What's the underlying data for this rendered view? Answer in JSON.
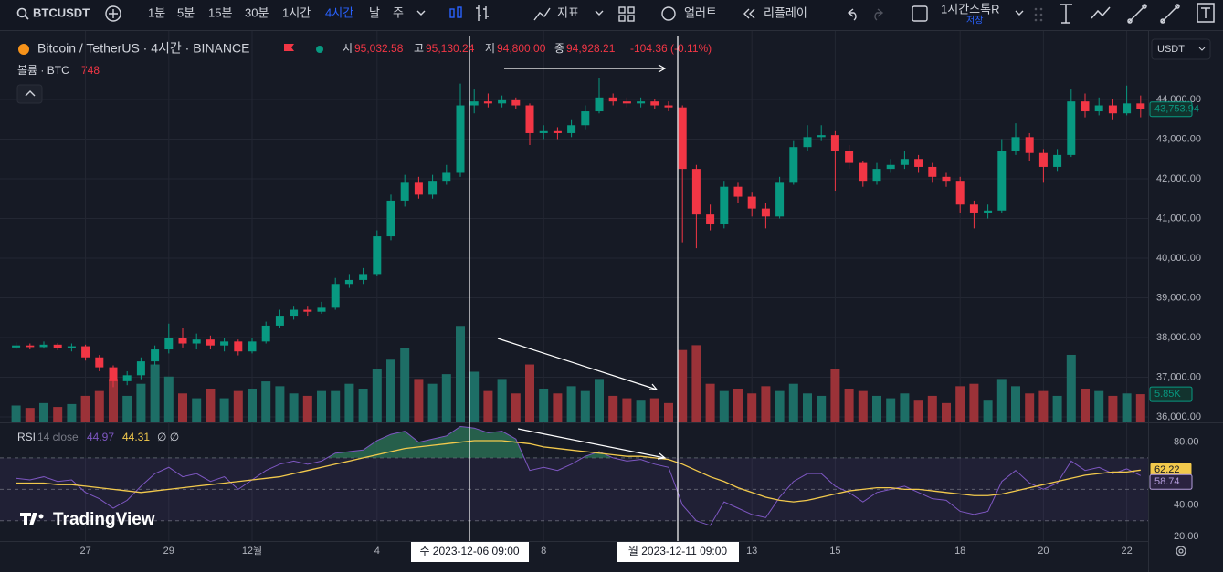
{
  "toolbar": {
    "symbol": "BTCUSDT",
    "intervals": [
      "1분",
      "5분",
      "15분",
      "30분",
      "1시간",
      "4시간",
      "날",
      "주"
    ],
    "active_interval": 5,
    "indicators": "지표",
    "alert": "얼러트",
    "replay": "리플레이",
    "layout_name": "1시간스톡R",
    "save": "저장",
    "currency": "USDT"
  },
  "legend": {
    "title": "Bitcoin / TetherUS · 4시간 · BINANCE",
    "ohlc": [
      {
        "label": "시",
        "value": "95,032.58"
      },
      {
        "label": "고",
        "value": "95,130.24"
      },
      {
        "label": "저",
        "value": "94,800.00"
      },
      {
        "label": "종",
        "value": "94,928.21"
      }
    ],
    "change": "-104.36 (-0.11%)",
    "volume_label": "볼륨 · BTC",
    "volume_value": "748",
    "rsi_label": "RSI",
    "rsi_params": "14 close",
    "rsi_value": "44.97",
    "rsi_ma_value": "44.31",
    "rsi_extra": "∅ ∅"
  },
  "logo": "TradingView",
  "crosshair_labels": [
    "수 2023-12-06  09:00",
    "월 2023-12-11  09:00"
  ],
  "chart_data": {
    "type": "candlestick",
    "categories": [
      null,
      null,
      null,
      null,
      null,
      "27",
      null,
      null,
      null,
      null,
      null,
      "29",
      null,
      null,
      null,
      null,
      null,
      "12월",
      null,
      null,
      null,
      null,
      null,
      null,
      null,
      null,
      "4",
      null,
      null,
      null,
      null,
      null,
      null,
      null,
      null,
      null,
      null,
      null,
      "8",
      null,
      null,
      null,
      null,
      null,
      null,
      null,
      null,
      null,
      null,
      null,
      null,
      null,
      null,
      "13",
      null,
      null,
      null,
      null,
      null,
      "15",
      null,
      null,
      null,
      null,
      null,
      null,
      null,
      null,
      "18",
      null,
      null,
      null,
      null,
      null,
      "20",
      null,
      null,
      null,
      null,
      null,
      "22",
      null
    ],
    "open": [
      37750,
      37800,
      37760,
      37820,
      37740,
      37780,
      37500,
      37250,
      36900,
      37050,
      37400,
      37700,
      38000,
      37850,
      37950,
      37800,
      37900,
      37650,
      37900,
      38300,
      38550,
      38700,
      38650,
      38750,
      39350,
      39450,
      39600,
      40550,
      41450,
      41900,
      41600,
      41950,
      42150,
      43850,
      43950,
      43900,
      43980,
      43850,
      43150,
      43200,
      43150,
      43350,
      43700,
      44050,
      43950,
      43900,
      43950,
      43850,
      43800,
      42250,
      41100,
      40850,
      41800,
      41550,
      41250,
      41050,
      41900,
      42800,
      43050,
      43100,
      42700,
      42400,
      41950,
      42250,
      42350,
      42500,
      42300,
      42050,
      41950,
      41350,
      41150,
      41200,
      42700,
      43050,
      42650,
      42300,
      42600,
      43950,
      43700,
      43850,
      43650,
      43900
    ],
    "high": [
      37880,
      37850,
      37900,
      37860,
      37850,
      37820,
      37560,
      37300,
      37150,
      37500,
      37800,
      38350,
      38250,
      38100,
      38050,
      38000,
      37950,
      38000,
      38400,
      38700,
      38800,
      38800,
      38900,
      39500,
      39600,
      39750,
      40700,
      41600,
      42100,
      42050,
      42100,
      42350,
      44400,
      44250,
      44150,
      44100,
      44050,
      43900,
      43350,
      43300,
      43500,
      43850,
      44550,
      44150,
      44050,
      44050,
      44000,
      43950,
      43850,
      42350,
      41350,
      41950,
      41900,
      41650,
      41400,
      42050,
      42950,
      43350,
      43350,
      43200,
      42850,
      42450,
      42400,
      42500,
      42700,
      42600,
      42400,
      42150,
      42050,
      41450,
      41350,
      43000,
      43400,
      43150,
      42750,
      42750,
      44250,
      44150,
      44050,
      44000,
      44350,
      44100
    ],
    "low": [
      37700,
      37700,
      37720,
      37680,
      37650,
      37420,
      37150,
      36750,
      36800,
      36950,
      37300,
      37600,
      37750,
      37700,
      37700,
      37650,
      37550,
      37600,
      37850,
      38250,
      38450,
      38550,
      38600,
      38700,
      39250,
      39350,
      39550,
      40450,
      41300,
      41500,
      41500,
      41850,
      42050,
      43650,
      43800,
      43800,
      43750,
      42850,
      43000,
      43000,
      43050,
      43250,
      43650,
      43850,
      43800,
      43800,
      43750,
      43700,
      40400,
      40250,
      40700,
      40750,
      41400,
      41050,
      40750,
      41000,
      41850,
      42700,
      42950,
      41700,
      42250,
      41800,
      41850,
      42150,
      42250,
      42150,
      41900,
      41800,
      41150,
      40750,
      41000,
      41150,
      42600,
      42450,
      41900,
      42200,
      42550,
      43550,
      43600,
      43500,
      43600,
      43550
    ],
    "close": [
      37800,
      37760,
      37820,
      37740,
      37780,
      37500,
      37250,
      36900,
      37050,
      37400,
      37700,
      38000,
      37850,
      37950,
      37800,
      37900,
      37650,
      37900,
      38300,
      38550,
      38700,
      38650,
      38750,
      39350,
      39450,
      39600,
      40550,
      41450,
      41900,
      41600,
      41950,
      42150,
      43850,
      43950,
      43900,
      43980,
      43850,
      43150,
      43200,
      43150,
      43350,
      43700,
      44050,
      43950,
      43900,
      43950,
      43850,
      43800,
      42250,
      41100,
      40850,
      41800,
      41550,
      41250,
      41050,
      41900,
      42800,
      43050,
      43100,
      42700,
      42400,
      41950,
      42250,
      42350,
      42500,
      42300,
      42050,
      41950,
      41350,
      41150,
      41200,
      42700,
      43050,
      42650,
      42300,
      42600,
      43950,
      43700,
      43850,
      43650,
      43900,
      43753.94
    ],
    "volume": [
      3500,
      3000,
      4000,
      3200,
      3800,
      5500,
      6500,
      9000,
      5500,
      8000,
      12000,
      9500,
      6000,
      5000,
      7000,
      5000,
      6500,
      7000,
      8500,
      7500,
      6000,
      5500,
      6500,
      6500,
      8000,
      7000,
      11000,
      13000,
      15500,
      9000,
      8000,
      10000,
      20000,
      10500,
      6500,
      9000,
      6000,
      12000,
      7000,
      6000,
      7500,
      6500,
      9000,
      5500,
      5000,
      4500,
      5000,
      4000,
      15000,
      16000,
      8000,
      6500,
      7000,
      6000,
      7500,
      6500,
      8000,
      6000,
      5500,
      11000,
      7000,
      6500,
      5500,
      5000,
      6000,
      4500,
      5500,
      4000,
      7500,
      8000,
      4500,
      9000,
      7500,
      6000,
      6500,
      5500,
      14000,
      7000,
      6500,
      5500,
      6000,
      5850
    ],
    "rsi_values": [
      57,
      56,
      58,
      55,
      56,
      48,
      44,
      38,
      43,
      52,
      60,
      64,
      58,
      60,
      55,
      58,
      50,
      56,
      62,
      66,
      68,
      66,
      68,
      73,
      74,
      75,
      81,
      85,
      87,
      80,
      82,
      84,
      90,
      89,
      86,
      87,
      82,
      62,
      64,
      62,
      66,
      71,
      74,
      70,
      68,
      69,
      66,
      64,
      40,
      30,
      27,
      42,
      38,
      34,
      32,
      45,
      55,
      60,
      60,
      52,
      48,
      42,
      48,
      50,
      52,
      48,
      44,
      43,
      36,
      34,
      36,
      55,
      62,
      54,
      50,
      54,
      68,
      62,
      64,
      60,
      63,
      58.74
    ],
    "rsi_ma_values": [
      54,
      54,
      54,
      53,
      53,
      52,
      51,
      50,
      49,
      48,
      49,
      50,
      51,
      52,
      53,
      54,
      55,
      56,
      57,
      58,
      60,
      62,
      64,
      66,
      68,
      70,
      72,
      74,
      76,
      77,
      78,
      79,
      80,
      81,
      81,
      81,
      80,
      79,
      77,
      76,
      75,
      74,
      73,
      72,
      71,
      71,
      70,
      69,
      66,
      62,
      58,
      55,
      51,
      48,
      45,
      43,
      42,
      43,
      45,
      47,
      49,
      50,
      51,
      51,
      50,
      50,
      49,
      48,
      47,
      46,
      46,
      47,
      49,
      51,
      53,
      55,
      57,
      59,
      60,
      61,
      61,
      62.22
    ],
    "price_label": "43,753.94",
    "volume_label": "5.85K",
    "rsi_label": "58.74",
    "rsi_ma_label": "62.22",
    "ylim": [
      35862,
      45586
    ],
    "yticks": [
      {
        "value": 36000,
        "label": "36,000.00"
      },
      {
        "value": 37000,
        "label": "37,000.00"
      },
      {
        "value": 38000,
        "label": "38,000.00"
      },
      {
        "value": 39000,
        "label": "39,000.00"
      },
      {
        "value": 40000,
        "label": "40,000.00"
      },
      {
        "value": 41000,
        "label": "41,000.00"
      },
      {
        "value": 42000,
        "label": "42,000.00"
      },
      {
        "value": 43000,
        "label": "43,000.00"
      },
      {
        "value": 44000,
        "label": "44,000.00"
      }
    ],
    "vlim": [
      0,
      80000
    ],
    "rsi_ylim": [
      17.1,
      92.6
    ],
    "rsi_yticks": [
      {
        "value": 20,
        "label": "20.00"
      },
      {
        "value": 40,
        "label": "40.00"
      },
      {
        "value": 80,
        "label": "80.00"
      }
    ],
    "rsi_bands": [
      30,
      50,
      70
    ],
    "grid": true,
    "up_color": "#089981",
    "down_color": "#f23645",
    "up_volume_color": "#1d6e66",
    "down_volume_color": "#9b3238",
    "rsi_color": "#7e57c2",
    "rsi_ma_color": "#f2c94c",
    "rsi_fill_color": "#2e7d5b"
  }
}
